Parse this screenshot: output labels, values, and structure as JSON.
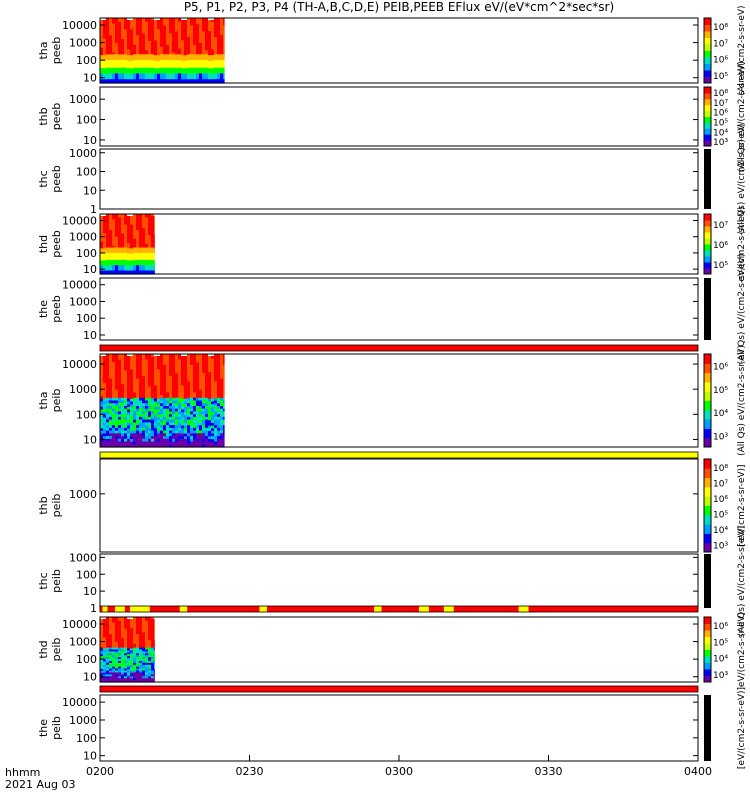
{
  "header": {
    "title": "P5, P1, P2, P3, P4 (TH-A,B,C,D,E) PEIB,PEEB EFlux eV/(eV*cm^2*sec*sr)"
  },
  "footer": {
    "time_label": "hhmm",
    "date_label": "2021 Aug 03"
  },
  "colors": {
    "spectrogram_scale": [
      "#6a00a8",
      "#0000ff",
      "#00a0ff",
      "#00e0c0",
      "#00ff00",
      "#c0ff00",
      "#ffff00",
      "#ffb000",
      "#ff5000",
      "#ff0000"
    ],
    "flag_red": "#ff0000",
    "flag_yellow": "#ffff00"
  },
  "chart_data": {
    "type": "heatmap",
    "title": "P5, P1, P2, P3, P4 (TH-A,B,C,D,E) PEIB,PEEB EFlux eV/(eV*cm^2*sec*sr)",
    "x_ticks": [
      "0200",
      "0230",
      "0300",
      "0330",
      "0400"
    ],
    "x_range_minutes": [
      0,
      120
    ],
    "panels": [
      {
        "id": "tha-peeb",
        "ylabel": [
          "tha",
          "peeb"
        ],
        "yticks": [
          "10",
          "100",
          "1000",
          "10000"
        ],
        "ylog": [
          0.7,
          4.4
        ],
        "data_start_min": 0,
        "data_end_min": 25,
        "noise": false,
        "colorbar_label": "(Al  eV/(cm2-s-sr-eV)",
        "colorbar_ticks": [
          "10⁵",
          "10⁶",
          "10⁷",
          "10⁸"
        ],
        "flag": null
      },
      {
        "id": "thb-peeb",
        "ylabel": [
          "thb",
          "peeb"
        ],
        "yticks": [
          "10",
          "100",
          "1000"
        ],
        "ylog": [
          0.7,
          3.6
        ],
        "data_start_min": null,
        "data_end_min": null,
        "noise": false,
        "colorbar_label": "(All Qs) eV/(cm2-s-sr-eV)",
        "colorbar_ticks": [
          "10³",
          "10⁴",
          "10⁵",
          "10⁶",
          "10⁷",
          "10⁸"
        ],
        "flag": null
      },
      {
        "id": "thc-peeb",
        "ylabel": [
          "thc",
          "peeb"
        ],
        "yticks": [
          "1",
          "10",
          "100",
          "1000"
        ],
        "ylog": [
          0,
          3.2
        ],
        "data_start_min": null,
        "data_end_min": null,
        "noise": false,
        "colorbar_label": "(All Qs) eV/(cm2-s-sr-eV)",
        "colorbar_ticks": [],
        "flag": null
      },
      {
        "id": "thd-peeb",
        "ylabel": [
          "thd",
          "peeb"
        ],
        "yticks": [
          "10",
          "100",
          "1000",
          "10000"
        ],
        "ylog": [
          0.7,
          4.4
        ],
        "data_start_min": 0,
        "data_end_min": 11,
        "noise": false,
        "colorbar_label": "eV/(cm2-s-sr-eV)",
        "colorbar_ticks": [
          "10⁵",
          "10⁶",
          "10⁷"
        ],
        "flag": null
      },
      {
        "id": "the-peeb",
        "ylabel": [
          "the",
          "peeb"
        ],
        "yticks": [
          "10",
          "100",
          "1000",
          "10000"
        ],
        "ylog": [
          0.7,
          4.4
        ],
        "data_start_min": null,
        "data_end_min": null,
        "noise": false,
        "colorbar_label": "(All Qs) eV/(cm2-s-sr-eV)",
        "colorbar_ticks": [],
        "flag": {
          "segments": [
            [
              0,
              120,
              "red"
            ]
          ]
        }
      },
      {
        "id": "tha-peib",
        "ylabel": [
          "tha",
          "peib"
        ],
        "yticks": [
          "10",
          "100",
          "1000",
          "10000"
        ],
        "ylog": [
          0.7,
          4.4
        ],
        "data_start_min": 0,
        "data_end_min": 25,
        "noise": true,
        "colorbar_label": "(All Qs) eV/(cm2-s-sr-eV)",
        "colorbar_ticks": [
          "10³",
          "10⁴",
          "10⁵",
          "10⁶"
        ],
        "flag": {
          "segments": [
            [
              0,
              120,
              "yellow"
            ]
          ]
        }
      },
      {
        "id": "thb-peib",
        "ylabel": [
          "thb",
          "peib"
        ],
        "yticks": [
          "1000"
        ],
        "ylog": [
          2.0,
          3.6
        ],
        "data_start_min": null,
        "data_end_min": null,
        "noise": false,
        "colorbar_label": "[eV/(cm2-s-sr-eV)]",
        "colorbar_ticks": [
          "10³",
          "10⁴",
          "10⁵",
          "10⁶",
          "10⁷",
          "10⁸"
        ],
        "flag": null
      },
      {
        "id": "thc-peib",
        "ylabel": [
          "thc",
          "peib"
        ],
        "yticks": [
          "1",
          "10",
          "100",
          "1000"
        ],
        "ylog": [
          0,
          3.2
        ],
        "data_start_min": null,
        "data_end_min": null,
        "noise": false,
        "colorbar_label": "(All Qs) eV/(cm2-s-sr-eV)",
        "colorbar_ticks": [],
        "flag": {
          "segments": [
            [
              0,
              120,
              "red"
            ],
            [
              0.5,
              1.5,
              "yellow"
            ],
            [
              3,
              5,
              "yellow"
            ],
            [
              6,
              10,
              "yellow"
            ],
            [
              16,
              17.5,
              "yellow"
            ],
            [
              32,
              33.5,
              "yellow"
            ],
            [
              55,
              56.5,
              "yellow"
            ],
            [
              64,
              66,
              "yellow"
            ],
            [
              69,
              71,
              "yellow"
            ],
            [
              84,
              86,
              "yellow"
            ]
          ]
        }
      },
      {
        "id": "thd-peib",
        "ylabel": [
          "thd",
          "peib"
        ],
        "yticks": [
          "10",
          "100",
          "1000",
          "10000"
        ],
        "ylog": [
          0.7,
          4.4
        ],
        "data_start_min": 0,
        "data_end_min": 11,
        "noise": true,
        "colorbar_label": "eV/(cm2-s-sr-eV)",
        "colorbar_ticks": [
          "10³",
          "10⁴",
          "10⁵",
          "10⁶"
        ],
        "flag": {
          "segments": [
            [
              0,
              120,
              "red"
            ]
          ]
        }
      },
      {
        "id": "the-peib",
        "ylabel": [
          "the",
          "peib"
        ],
        "yticks": [
          "10",
          "100",
          "1000",
          "10000"
        ],
        "ylog": [
          0.7,
          4.4
        ],
        "data_start_min": null,
        "data_end_min": null,
        "noise": false,
        "colorbar_label": "[eV/(cm2-s-sr-eV)]",
        "colorbar_ticks": [],
        "flag": null
      }
    ]
  }
}
